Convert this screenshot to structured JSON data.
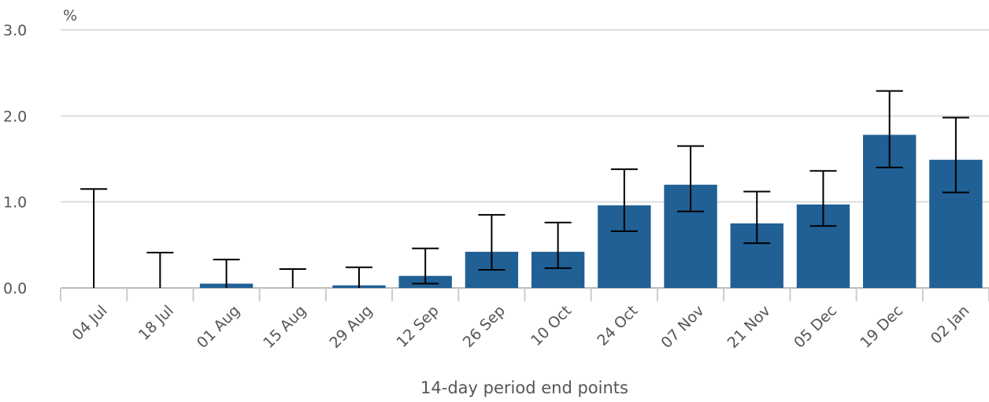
{
  "chart_data": {
    "type": "bar",
    "y_unit": "%",
    "x_label": "14-day period end points",
    "categories": [
      "04 Jul",
      "18 Jul",
      "01 Aug",
      "15 Aug",
      "29 Aug",
      "12 Sep",
      "26 Sep",
      "10 Oct",
      "24 Oct",
      "07 Nov",
      "21 Nov",
      "05 Dec",
      "19 Dec",
      "02 Jan"
    ],
    "values": [
      0,
      0,
      0.05,
      0,
      0.03,
      0.14,
      0.42,
      0.42,
      0.96,
      1.2,
      0.75,
      0.97,
      1.78,
      1.49
    ],
    "lower": [
      0,
      0,
      0,
      0,
      0,
      0.05,
      0.21,
      0.23,
      0.66,
      0.89,
      0.52,
      0.72,
      1.4,
      1.11
    ],
    "upper": [
      1.15,
      0.41,
      0.33,
      0.22,
      0.24,
      0.46,
      0.85,
      0.76,
      1.38,
      1.65,
      1.12,
      1.36,
      2.29,
      1.98
    ],
    "color": "#206095",
    "ylim": [
      0,
      3
    ],
    "yticks": [
      {
        "value": 0,
        "label": "0.0"
      },
      {
        "value": 1,
        "label": "1.0"
      },
      {
        "value": 2,
        "label": "2.0"
      },
      {
        "value": 3,
        "label": "3.0"
      }
    ],
    "grid": true
  }
}
